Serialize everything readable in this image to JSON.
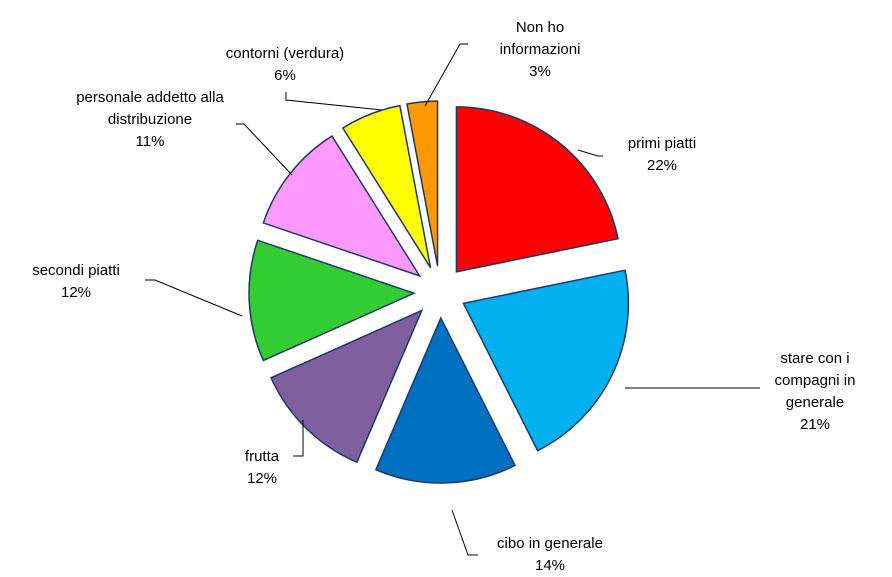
{
  "chart_data": {
    "type": "pie",
    "categories": [
      "primi piatti",
      "stare con i compagni in generale",
      "cibo in generale",
      "frutta",
      "secondi piatti",
      "personale addetto alla distribuzione",
      "contorni (verdura)",
      "Non ho informazioni"
    ],
    "values": [
      22,
      21,
      14,
      12,
      12,
      11,
      6,
      3
    ],
    "value_labels": [
      "22%",
      "21%",
      "14%",
      "12%",
      "12%",
      "11%",
      "6%",
      "3%"
    ],
    "colors": [
      "#ff0000",
      "#00b0f0",
      "#0070c0",
      "#7f5f9f",
      "#33cc33",
      "#ff99ff",
      "#ffff00",
      "#ff9900"
    ]
  }
}
